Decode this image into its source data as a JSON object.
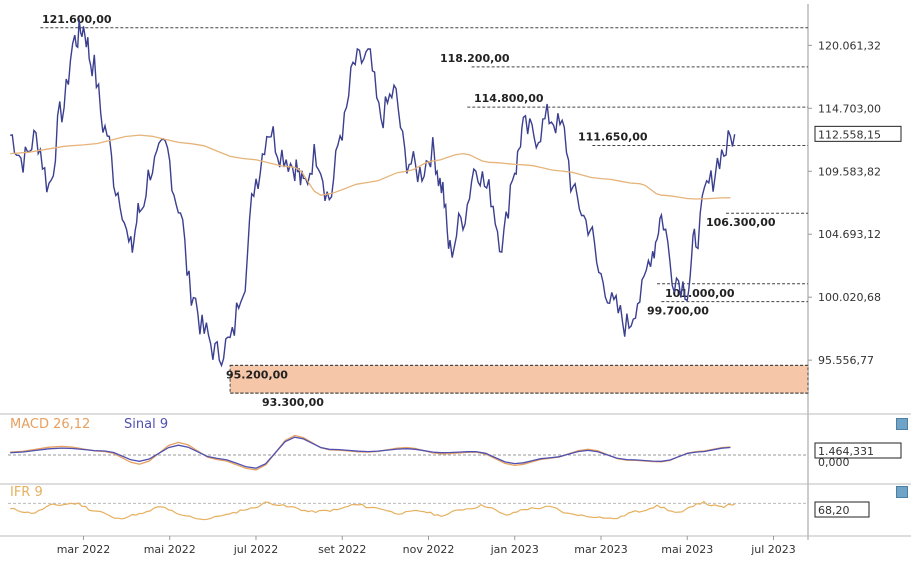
{
  "colors": {
    "price": "#3b3f8f",
    "sma": "#e6b47a",
    "macd": "#e6a060",
    "signal": "#5050b0",
    "rsi": "#e6b060",
    "zone": "#f6c6a8",
    "level_line": "#444444",
    "axis_text": "#333333",
    "box_border": "#222222"
  },
  "chart_data": [
    {
      "type": "line",
      "panel": "price",
      "title": "",
      "y_axis_ticks": [
        "120.061,32",
        "114.703,00",
        "109.583,82",
        "104.693,12",
        "100.020,68",
        "95.556,77"
      ],
      "ylim": [
        92500,
        123000
      ],
      "y_scale": "log",
      "last_value_label": "112.558,15",
      "levels": [
        {
          "label": "121.600,00",
          "value": 121600
        },
        {
          "label": "118.200,00",
          "value": 118200
        },
        {
          "label": "114.800,00",
          "value": 114800
        },
        {
          "label": "111.650,00",
          "value": 111650
        },
        {
          "label": "106.300,00",
          "value": 106300
        },
        {
          "label": "101.000,00",
          "value": 101000
        },
        {
          "label": "99.700,00",
          "value": 99700
        },
        {
          "label": "95.200,00",
          "value": 95200
        },
        {
          "label": "93.300,00",
          "value": 93300
        }
      ],
      "support_zone": [
        93300,
        95200
      ],
      "x_ticks": [
        "mar 2022",
        "mai 2022",
        "jul 2022",
        "set 2022",
        "nov 2022",
        "jan 2023",
        "mar 2023",
        "mai 2023",
        "jul 2023"
      ],
      "x_tick_months": [
        2,
        4,
        6,
        8,
        10,
        12,
        14,
        16,
        18
      ],
      "x_range_months": [
        0.25,
        18.8
      ],
      "x_data_end_month": 17.1,
      "series": [
        {
          "name": "",
          "kind": "price",
          "x": [
            0.3,
            0.6,
            0.9,
            1.2,
            1.5,
            1.8,
            2.0,
            2.2,
            2.5,
            2.8,
            3.1,
            3.3,
            3.6,
            3.9,
            4.2,
            4.5,
            4.8,
            5.1,
            5.4,
            5.7,
            6.0,
            6.3,
            6.6,
            6.9,
            7.1,
            7.4,
            7.7,
            8.0,
            8.3,
            8.6,
            8.9,
            9.2,
            9.5,
            9.8,
            10.1,
            10.3,
            10.5,
            10.8,
            11.1,
            11.4,
            11.7,
            12.0,
            12.2,
            12.5,
            12.8,
            13.1,
            13.4,
            13.7,
            14.0,
            14.3,
            14.6,
            14.9,
            15.2,
            15.4,
            15.7,
            16.0,
            16.2,
            16.5,
            16.8,
            17.1
          ],
          "values": [
            112500,
            110500,
            112300,
            108500,
            114500,
            120500,
            121600,
            118500,
            113000,
            108000,
            103500,
            106500,
            110000,
            111400,
            107000,
            100500,
            97500,
            96000,
            96800,
            101000,
            109000,
            113000,
            111000,
            110000,
            108500,
            111000,
            107500,
            113000,
            118500,
            119000,
            114000,
            116000,
            110500,
            109500,
            111200,
            108500,
            103500,
            106000,
            110000,
            108000,
            104200,
            109800,
            113000,
            112500,
            114000,
            113000,
            107500,
            105500,
            101500,
            99300,
            98000,
            100000,
            103500,
            106000,
            101500,
            100700,
            104500,
            108500,
            111000,
            112558
          ]
        },
        {
          "name": "",
          "kind": "moving_average",
          "x": [
            0.3,
            2.0,
            3.3,
            4.5,
            5.7,
            6.9,
            7.5,
            8.6,
            9.5,
            10.1,
            10.8,
            11.4,
            12.2,
            13.1,
            14.0,
            14.9,
            15.4,
            16.2,
            17.0
          ],
          "values": [
            111000,
            111700,
            112500,
            111800,
            110600,
            109900,
            107700,
            108700,
            109600,
            110400,
            111000,
            110300,
            110100,
            109600,
            109000,
            108600,
            107700,
            107400,
            107500
          ]
        }
      ]
    },
    {
      "type": "line",
      "panel": "macd",
      "legend": [
        "MACD 26,12",
        "Sinal 9"
      ],
      "y_axis_ticks": [
        "0,000"
      ],
      "last_value_label": "1.464,331",
      "ylim": [
        -4000,
        4000
      ],
      "series": [
        {
          "name": "MACD 26,12",
          "x": [
            0.3,
            1.5,
            2.5,
            3.3,
            4.2,
            5.1,
            6.0,
            6.9,
            7.7,
            8.6,
            9.5,
            10.3,
            11.1,
            12.0,
            12.8,
            13.7,
            14.6,
            15.4,
            16.2,
            17.0
          ],
          "values": [
            500,
            1500,
            600,
            -1600,
            2200,
            -800,
            -2600,
            3400,
            900,
            500,
            1300,
            200,
            500,
            -1800,
            -600,
            1000,
            -900,
            -1200,
            600,
            1400
          ]
        },
        {
          "name": "Sinal 9",
          "x": [
            0.3,
            1.5,
            2.5,
            3.3,
            4.2,
            5.1,
            6.0,
            6.9,
            7.7,
            8.6,
            9.5,
            10.3,
            11.1,
            12.0,
            12.8,
            13.7,
            14.6,
            15.4,
            16.2,
            17.0
          ],
          "values": [
            400,
            1200,
            700,
            -1100,
            1700,
            -600,
            -2300,
            3100,
            1000,
            600,
            1100,
            400,
            600,
            -1500,
            -500,
            800,
            -800,
            -1100,
            500,
            1300
          ]
        }
      ]
    },
    {
      "type": "line",
      "panel": "rsi",
      "legend": [
        "IFR 9"
      ],
      "last_value_label": "68,20",
      "ylim": [
        0,
        100
      ],
      "series": [
        {
          "name": "IFR 9",
          "x": [
            0.3,
            0.8,
            1.3,
            1.8,
            2.3,
            2.8,
            3.3,
            3.8,
            4.3,
            4.8,
            5.3,
            5.8,
            6.3,
            6.8,
            7.3,
            7.8,
            8.3,
            8.8,
            9.3,
            9.8,
            10.3,
            10.8,
            11.3,
            11.8,
            12.3,
            12.8,
            13.3,
            13.8,
            14.3,
            14.8,
            15.3,
            15.8,
            16.3,
            16.8,
            17.1
          ],
          "values": [
            55,
            45,
            65,
            70,
            50,
            30,
            42,
            60,
            38,
            28,
            40,
            55,
            72,
            60,
            48,
            52,
            66,
            58,
            44,
            50,
            38,
            55,
            64,
            40,
            56,
            60,
            42,
            35,
            30,
            48,
            62,
            45,
            72,
            60,
            68
          ]
        }
      ]
    }
  ]
}
